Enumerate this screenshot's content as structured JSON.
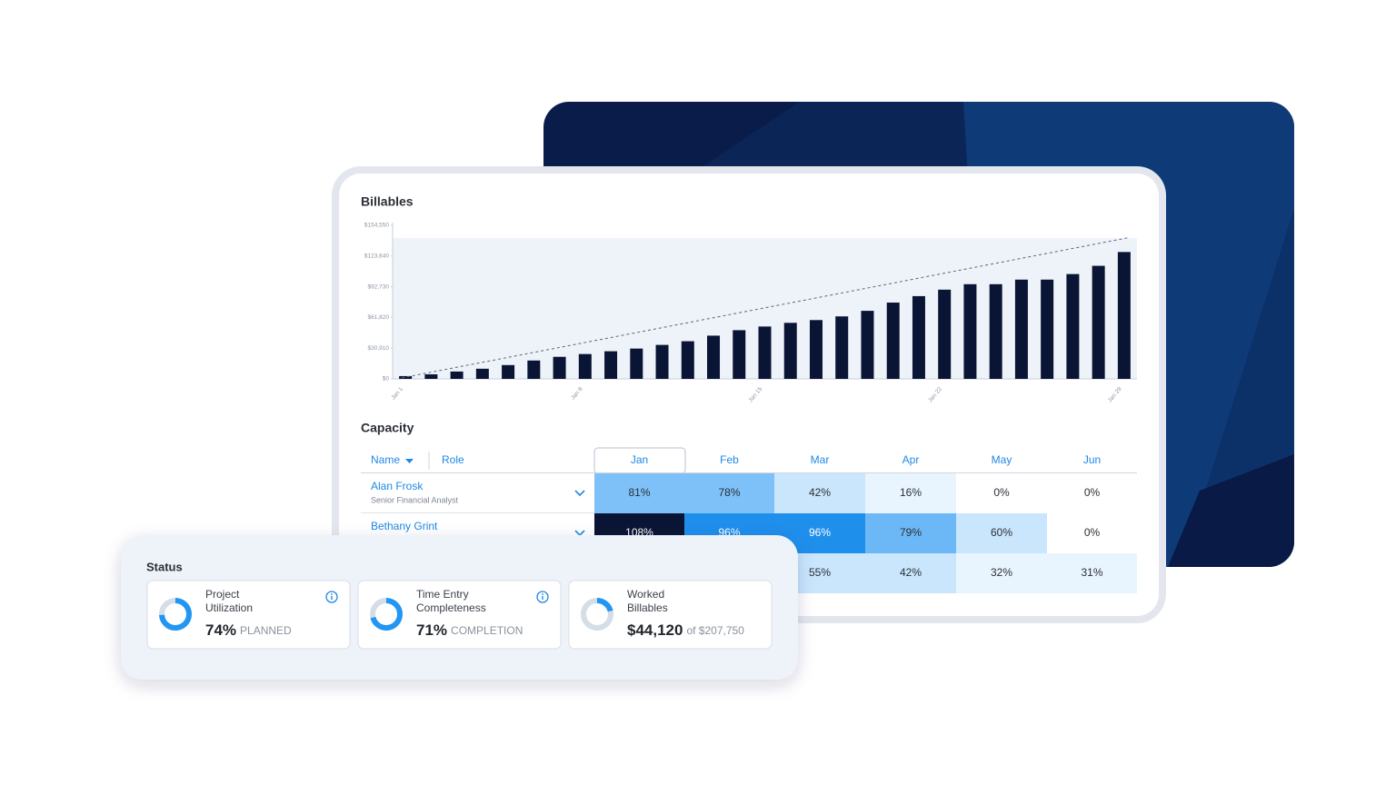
{
  "chart_data": {
    "type": "bar",
    "title": "Billables",
    "categories": [
      "Jan 1",
      null,
      null,
      null,
      null,
      null,
      null,
      "Jan 8",
      null,
      null,
      null,
      null,
      null,
      null,
      "Jan 15",
      null,
      null,
      null,
      null,
      null,
      null,
      "Jan 22",
      null,
      null,
      null,
      null,
      null,
      null,
      "Jan 29"
    ],
    "values": [
      2800,
      4600,
      7400,
      10200,
      13900,
      18500,
      22200,
      25000,
      27800,
      30500,
      34200,
      37900,
      43500,
      49000,
      52700,
      56400,
      59200,
      62900,
      68500,
      76800,
      83300,
      89800,
      95300,
      95300,
      99900,
      99900,
      105500,
      113800,
      127700
    ],
    "color": "#0a1535",
    "trend": [
      1000,
      142000
    ],
    "ylim": [
      0,
      154550
    ],
    "yticks": [
      {
        "value": 0,
        "label": "$0"
      },
      {
        "value": 30910,
        "label": "$30,910"
      },
      {
        "value": 61820,
        "label": "$61,820"
      },
      {
        "value": 92730,
        "label": "$92,730"
      },
      {
        "value": 123640,
        "label": "$123,640"
      },
      {
        "value": 154550,
        "label": "$154,550"
      }
    ]
  },
  "capacity": {
    "title": "Capacity",
    "columns": {
      "name": "Name",
      "role": "Role",
      "months": [
        "Jan",
        "Feb",
        "Mar",
        "Apr",
        "May",
        "Jun"
      ]
    },
    "rows": [
      {
        "name": "Alan Frosk",
        "role": "Senior Financial Analyst",
        "cells": [
          {
            "text": "81%",
            "color": "#7dc1f8"
          },
          {
            "text": "78%",
            "color": "#7dc1f8"
          },
          {
            "text": "42%",
            "color": "#c9e6fd"
          },
          {
            "text": "16%",
            "color": "#e9f5fe"
          },
          {
            "text": "0%",
            "color": "#ffffff"
          },
          {
            "text": "0%",
            "color": "#ffffff"
          }
        ]
      },
      {
        "name": "Bethany Grint",
        "cells": [
          {
            "text": "108%",
            "color": "#0a1535",
            "text_color": "#ffffff"
          },
          {
            "text": "96%",
            "color": "#1f8fec",
            "text_color": "#ffffff"
          },
          {
            "text": "96%",
            "color": "#1f8fec",
            "text_color": "#ffffff"
          },
          {
            "text": "79%",
            "color": "#6cb8f6"
          },
          {
            "text": "60%",
            "color": "#c9e6fd"
          },
          {
            "text": "0%",
            "color": "#ffffff"
          }
        ]
      },
      {
        "cells": [
          null,
          null,
          {
            "text": "55%",
            "color": "#c9e6fd"
          },
          {
            "text": "42%",
            "color": "#c9e6fd"
          },
          {
            "text": "32%",
            "color": "#e9f5fe"
          },
          {
            "text": "31%",
            "color": "#e9f5fe"
          }
        ]
      }
    ]
  },
  "status": {
    "title": "Status",
    "arc_color": "#2196f3",
    "track_color": "#d5dde7",
    "cards": [
      {
        "title": [
          "Project",
          "Utilization"
        ],
        "value": 74,
        "value_label": "74%",
        "total": 100,
        "unit": "PLANNED",
        "info": true
      },
      {
        "title": [
          "Time Entry",
          "Completeness"
        ],
        "value": 71,
        "value_label": "71%",
        "total": 100,
        "unit": "COMPLETION",
        "info": true
      },
      {
        "title": [
          "Worked",
          "Billables"
        ],
        "value": 44120,
        "value_label": "$44,120",
        "total": 207750,
        "unit": "of $207,750",
        "info": false
      }
    ]
  }
}
